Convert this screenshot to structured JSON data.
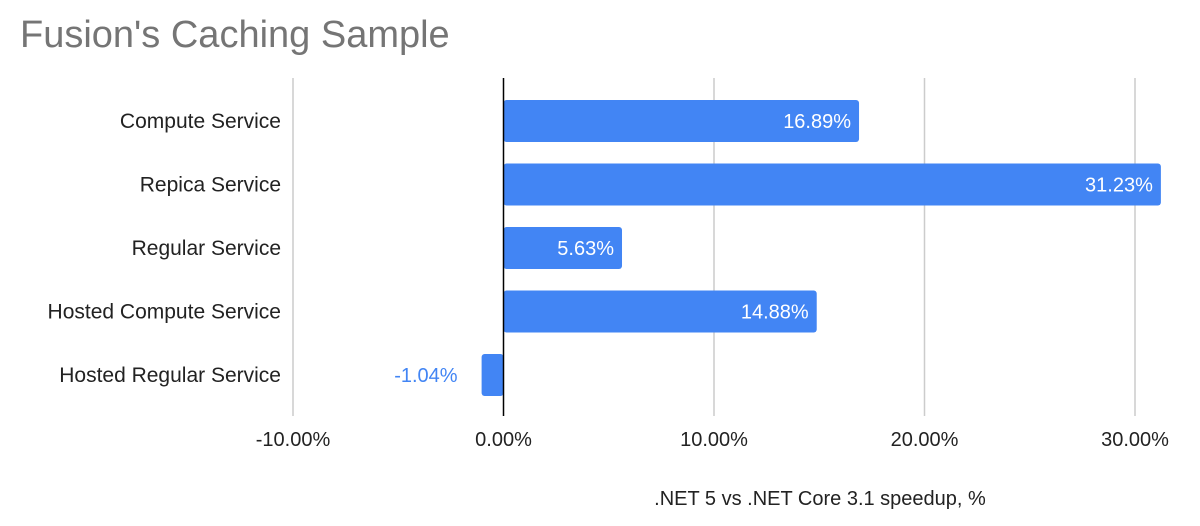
{
  "title": "Fusion's Caching Sample",
  "chart_data": {
    "type": "bar",
    "orientation": "horizontal",
    "title": "Fusion's Caching Sample",
    "xlabel": ".NET 5 vs .NET Core 3.1 speedup, %",
    "ylabel": "",
    "categories": [
      "Compute Service",
      "Repica Service",
      "Regular Service",
      "Hosted Compute Service",
      "Hosted Regular Service"
    ],
    "values": [
      16.89,
      31.23,
      5.63,
      14.88,
      -1.04
    ],
    "data_labels": [
      "16.89%",
      "31.23%",
      "5.63%",
      "14.88%",
      "-1.04%"
    ],
    "xlim": [
      -10,
      30
    ],
    "x_ticks": [
      -10,
      0,
      10,
      20,
      30
    ],
    "x_tick_labels": [
      "-10.00%",
      "0.00%",
      "10.00%",
      "20.00%",
      "30.00%"
    ],
    "grid": true,
    "legend": "none",
    "bar_color": "#4285f4",
    "grid_color": "#cccccc",
    "zero_line_color": "#000000"
  }
}
